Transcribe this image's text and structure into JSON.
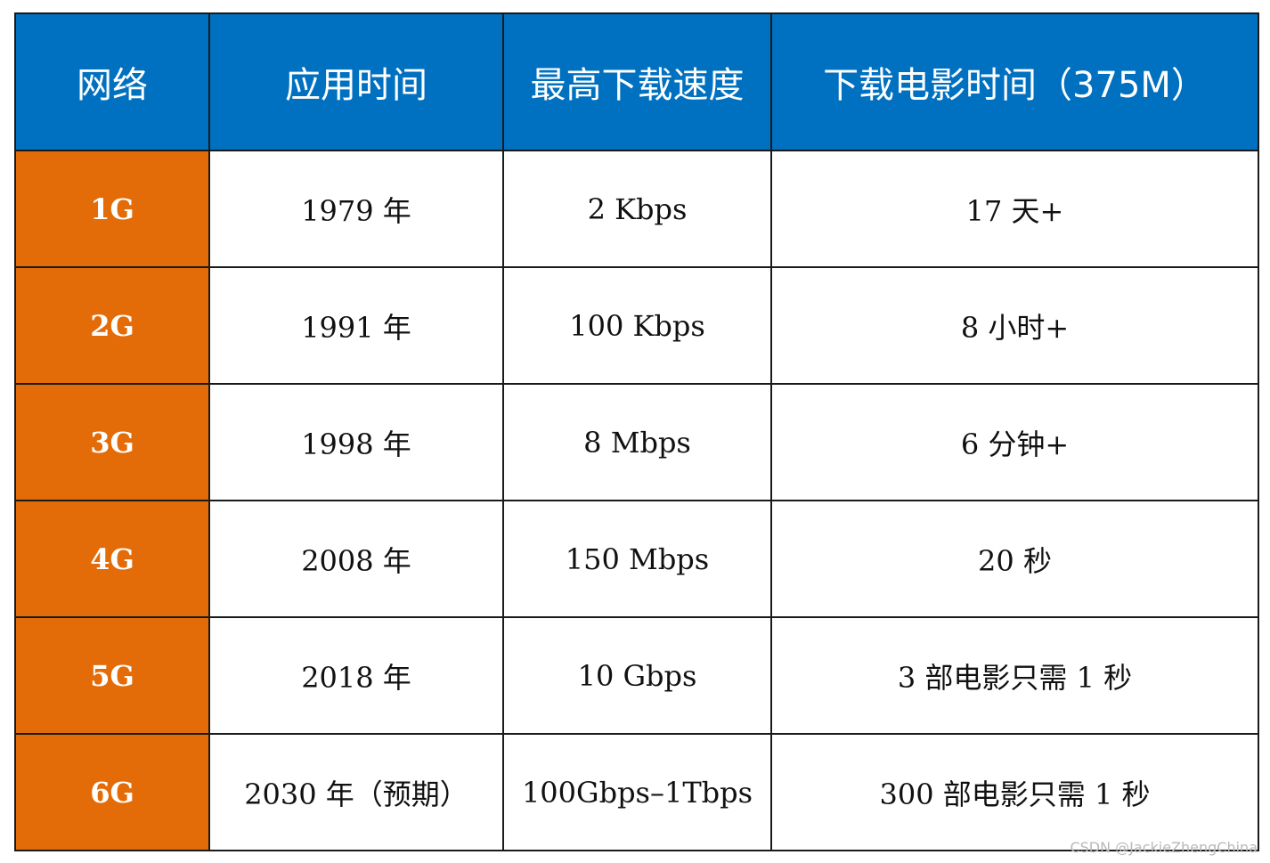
{
  "table": {
    "headers": [
      "网络",
      "应用时间",
      "最高下载速度",
      "下载电影时间（375M）"
    ],
    "rows": [
      [
        "1G",
        "1979 年",
        "2 Kbps",
        "17 天+"
      ],
      [
        "2G",
        "1991 年",
        "100 Kbps",
        "8 小时+"
      ],
      [
        "3G",
        "1998 年",
        "8 Mbps",
        "6 分钟+"
      ],
      [
        "4G",
        "2008 年",
        "150 Mbps",
        "20 秒"
      ],
      [
        "5G",
        "2018 年",
        "10 Gbps",
        "3 部电影只需 1 秒"
      ],
      [
        "6G",
        "2030 年（预期）",
        "100Gbps–1Tbps",
        "300 部电影只需 1 秒"
      ]
    ]
  },
  "watermark": "CSDN @JackieZhengChina",
  "colors": {
    "header_bg": "#0070c0",
    "network_cell_bg": "#e36c09",
    "border": "#1a1a1a"
  }
}
